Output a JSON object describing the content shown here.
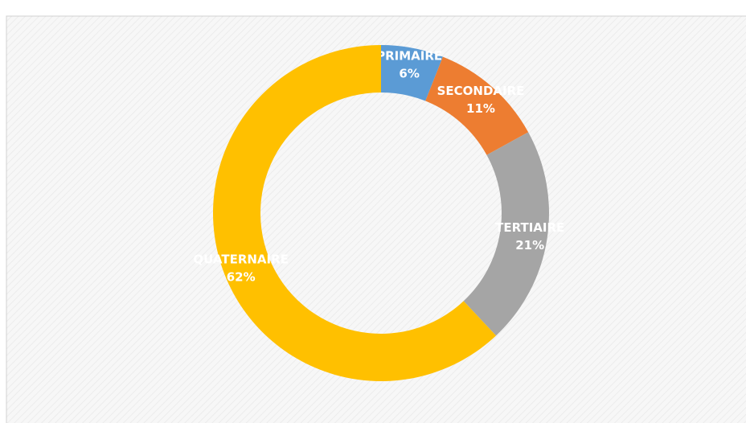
{
  "chart_data": {
    "type": "donut",
    "categories": [
      "PRIMAIRE",
      "SECONDAIRE",
      "TERTIAIRE",
      "QUATERNAIRE"
    ],
    "values": [
      6,
      11,
      21,
      62
    ],
    "value_labels": [
      "6%",
      "11%",
      "21%",
      "62%"
    ],
    "colors": [
      "#5b9bd5",
      "#ed7d31",
      "#a5a5a5",
      "#ffc000"
    ]
  }
}
